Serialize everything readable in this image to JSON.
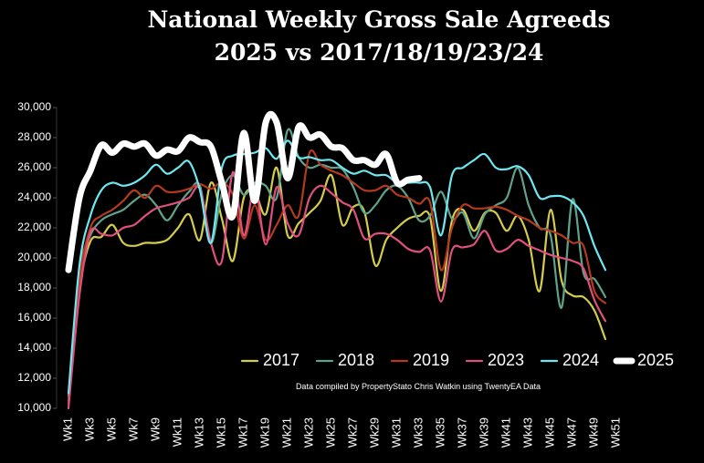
{
  "chart_data": {
    "type": "line",
    "title": "National Weekly Gross Sale Agreeds",
    "subtitle": "2025 vs 2017/18/19/23/24",
    "annotation": "Data compiled by PropertyStato Chris Watkin using TwentyEA Data",
    "categories": [
      "Wk1",
      null,
      "Wk3",
      null,
      "Wk5",
      null,
      "Wk7",
      null,
      "Wk9",
      null,
      "Wk11",
      null,
      "Wk13",
      null,
      "Wk15",
      null,
      "Wk17",
      null,
      "Wk19",
      null,
      "Wk21",
      null,
      "Wk23",
      null,
      "Wk25",
      null,
      "Wk27",
      null,
      "Wk29",
      null,
      "Wk31",
      null,
      "Wk33",
      null,
      "Wk35",
      null,
      "Wk37",
      null,
      "Wk39",
      null,
      "Wk41",
      null,
      "Wk43",
      null,
      "Wk45",
      null,
      "Wk47",
      null,
      "Wk49",
      null,
      "Wk51"
    ],
    "ylim": [
      10000,
      30000
    ],
    "yticks": [
      {
        "value": 10000,
        "label": "10,000"
      },
      {
        "value": 12000,
        "label": "12,000"
      },
      {
        "value": 14000,
        "label": "14,000"
      },
      {
        "value": 16000,
        "label": "16,000"
      },
      {
        "value": 18000,
        "label": "18,000"
      },
      {
        "value": 20000,
        "label": "20,000"
      },
      {
        "value": 22000,
        "label": "22,000"
      },
      {
        "value": 24000,
        "label": "24,000"
      },
      {
        "value": 26000,
        "label": "26,000"
      },
      {
        "value": 28000,
        "label": "28,000"
      },
      {
        "value": 30000,
        "label": "30,000"
      }
    ],
    "grid": false,
    "smooth": true,
    "series": [
      {
        "name": "2017",
        "color": "#d4cc4a",
        "width": 2.2,
        "values": [
          10800,
          18000,
          21100,
          21400,
          22200,
          21000,
          20800,
          21000,
          21000,
          21200,
          22000,
          22900,
          21200,
          25000,
          22600,
          19800,
          24000,
          24400,
          22900,
          26000,
          21500,
          22300,
          23000,
          23800,
          25500,
          22200,
          23400,
          23100,
          19500,
          21200,
          22000,
          22600,
          22800,
          22700,
          17800,
          22500,
          23200,
          21800,
          23000,
          23000,
          21800,
          22800,
          21200,
          17800,
          23200,
          18500,
          17500,
          17400,
          16500,
          14600,
          null
        ]
      },
      {
        "name": "2018",
        "color": "#5fa38a",
        "width": 2.2,
        "values": [
          10500,
          19000,
          21500,
          22500,
          22900,
          23200,
          23800,
          24200,
          23500,
          22500,
          23500,
          24400,
          24800,
          21000,
          24300,
          25500,
          24200,
          25000,
          24800,
          24000,
          28500,
          26700,
          26000,
          26200,
          26000,
          25900,
          24700,
          23000,
          23500,
          24500,
          24800,
          24000,
          22500,
          22800,
          24400,
          22600,
          23000,
          21300,
          22900,
          23500,
          24000,
          26000,
          23500,
          22000,
          21500,
          16700,
          23900,
          19000,
          18600,
          17400,
          null
        ]
      },
      {
        "name": "2019",
        "color": "#b33a1e",
        "width": 2.2,
        "values": [
          10300,
          18500,
          22000,
          22800,
          23200,
          23800,
          24500,
          24000,
          24800,
          24400,
          24400,
          24600,
          24900,
          24600,
          25000,
          24200,
          21300,
          23500,
          21200,
          22200,
          23500,
          22800,
          27000,
          26200,
          25800,
          25500,
          25000,
          24500,
          24500,
          24800,
          24200,
          24000,
          23600,
          23700,
          19200,
          22000,
          23500,
          23300,
          23300,
          23400,
          23200,
          22800,
          22500,
          22000,
          21800,
          21500,
          21000,
          20800,
          17800,
          17000,
          null
        ]
      },
      {
        "name": "2023",
        "color": "#e0507e",
        "width": 2.2,
        "values": [
          10000,
          17500,
          21700,
          21600,
          21500,
          22000,
          22200,
          22800,
          23300,
          23500,
          23700,
          24000,
          24600,
          21000,
          19800,
          25700,
          21500,
          24800,
          20900,
          24700,
          22300,
          21500,
          24000,
          24800,
          24300,
          23700,
          23200,
          21300,
          21600,
          21600,
          21200,
          20600,
          20400,
          20500,
          17100,
          20500,
          20700,
          20900,
          21800,
          20500,
          20600,
          21200,
          20800,
          20500,
          20200,
          20000,
          19800,
          19300,
          17200,
          15800,
          null
        ]
      },
      {
        "name": "2024",
        "color": "#6ee8f0",
        "width": 2.2,
        "values": [
          11000,
          19500,
          22800,
          24500,
          25000,
          24800,
          25000,
          25500,
          26200,
          25600,
          26000,
          26400,
          24500,
          21000,
          26000,
          26800,
          26900,
          27000,
          27300,
          26600,
          27800,
          26700,
          26700,
          26500,
          26500,
          26000,
          25600,
          25800,
          25500,
          25500,
          25000,
          25000,
          25000,
          24700,
          21500,
          25500,
          26000,
          26500,
          26900,
          26000,
          25900,
          26100,
          25500,
          24000,
          24100,
          24100,
          23700,
          22800,
          20800,
          19200,
          null
        ]
      },
      {
        "name": "2025",
        "color": "#ffffff",
        "width": 7,
        "values": [
          19200,
          24000,
          25800,
          27500,
          27000,
          27600,
          27400,
          27600,
          26800,
          27200,
          27100,
          28000,
          27700,
          27400,
          25000,
          22800,
          28300,
          23800,
          29000,
          29000,
          25300,
          28700,
          28000,
          28200,
          27400,
          27300,
          26500,
          26500,
          26200,
          26900,
          25000,
          25200,
          25300,
          null,
          null,
          null,
          null,
          null,
          null,
          null,
          null,
          null,
          null,
          null,
          null,
          null,
          null,
          null,
          null,
          null,
          null
        ]
      }
    ]
  }
}
